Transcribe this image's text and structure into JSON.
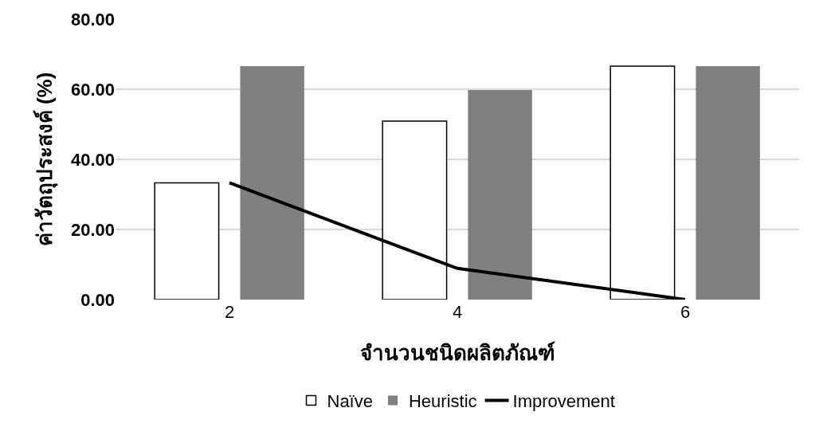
{
  "chart_data": {
    "type": "bar",
    "xlabel": "จำนวนชนิดผลิตภัณฑ์",
    "ylabel": "ค่าวัตถุประสงค์ (%)",
    "categories": [
      "2",
      "4",
      "6"
    ],
    "series": [
      {
        "name": "Naïve",
        "color": "#ffffff",
        "values": [
          33.3,
          50.9,
          66.6
        ]
      },
      {
        "name": "Heuristic",
        "color": "#808080",
        "values": [
          66.6,
          59.8,
          66.6
        ]
      },
      {
        "name": "Improvement",
        "type": "line",
        "color": "#000000",
        "values": [
          33.3,
          8.9,
          0
        ],
        "marker": "none",
        "line_style": "solid"
      }
    ],
    "ylim": [
      0,
      80
    ],
    "yticks": [
      {
        "value": 0,
        "label": "0.00"
      },
      {
        "value": 20,
        "label": "20.00"
      },
      {
        "value": 40,
        "label": "40.00"
      },
      {
        "value": 60,
        "label": "60.00"
      },
      {
        "value": 80,
        "label": "80.00"
      }
    ],
    "grid": "y",
    "legend": "bottom"
  }
}
